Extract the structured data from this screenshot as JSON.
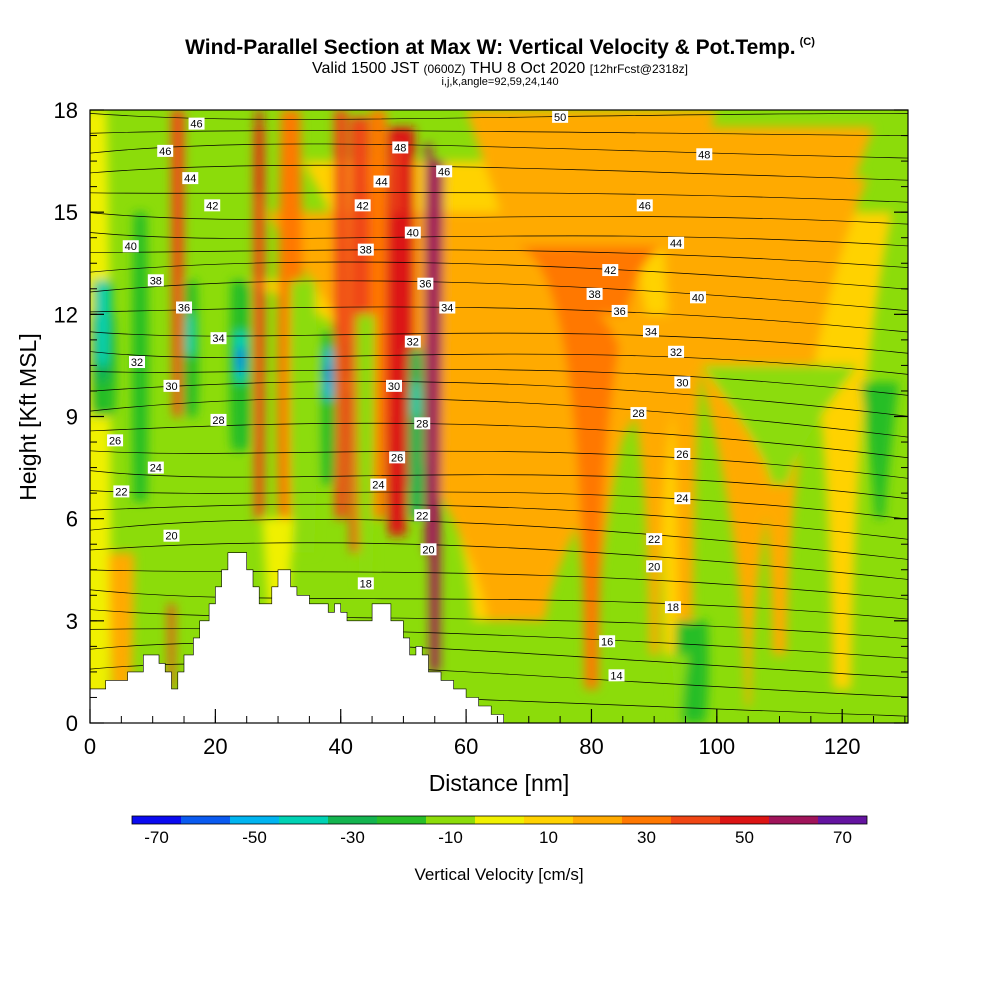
{
  "header": {
    "title": "Wind-Parallel Section at Max W: Vertical Velocity & Pot.Temp.",
    "title_mark": "(C)",
    "subtitle_valid": "Valid 1500 JST",
    "subtitle_zulu": "(0600Z)",
    "subtitle_date": "THU 8 Oct 2020",
    "subtitle_fcst": "[12hrFcst@2318z]",
    "params": "i,j,k,angle=92,59,24,140"
  },
  "chart_data": {
    "type": "heatmap",
    "xlabel": "Distance [nm]",
    "ylabel": "Height [Kft MSL]",
    "xlim": [
      0,
      130.5
    ],
    "ylim": [
      0,
      18
    ],
    "x_ticks": [
      0,
      20,
      40,
      60,
      80,
      100,
      120
    ],
    "y_ticks": [
      0,
      3,
      6,
      9,
      12,
      15,
      18
    ],
    "colorbar": {
      "label": "Vertical Velocity [cm/s]",
      "bounds": [
        -75,
        -65,
        -55,
        -45,
        -35,
        -25,
        -15,
        -5,
        5,
        15,
        25,
        35,
        45,
        55,
        65,
        75
      ],
      "tick_labels": [
        "-70",
        "-50",
        "-30",
        "-10",
        "10",
        "30",
        "50",
        "70"
      ],
      "colors": [
        "#0a0af0",
        "#0a5af0",
        "#00b4f0",
        "#00d2b4",
        "#14b450",
        "#28be28",
        "#8cdc0a",
        "#f0f000",
        "#ffd200",
        "#ffaa00",
        "#ff7800",
        "#f04614",
        "#dc1414",
        "#a0145a",
        "#6414a0"
      ]
    },
    "terrain": [
      [
        0,
        1
      ],
      [
        2.5,
        1
      ],
      [
        2.5,
        1.25
      ],
      [
        6,
        1.25
      ],
      [
        6,
        1.5
      ],
      [
        8.5,
        1.5
      ],
      [
        8.5,
        2
      ],
      [
        11,
        2
      ],
      [
        11,
        1.75
      ],
      [
        12,
        1.75
      ],
      [
        12,
        1.5
      ],
      [
        13,
        1.5
      ],
      [
        13,
        1
      ],
      [
        14,
        1
      ],
      [
        14,
        1.5
      ],
      [
        15,
        1.5
      ],
      [
        15,
        2
      ],
      [
        16.5,
        2
      ],
      [
        16.5,
        2.5
      ],
      [
        17.5,
        2.5
      ],
      [
        17.5,
        3
      ],
      [
        19,
        3
      ],
      [
        19,
        3.5
      ],
      [
        20,
        3.5
      ],
      [
        20,
        4
      ],
      [
        21,
        4
      ],
      [
        21,
        4.5
      ],
      [
        22,
        4.5
      ],
      [
        22,
        5
      ],
      [
        25,
        5
      ],
      [
        25,
        4.5
      ],
      [
        26,
        4.5
      ],
      [
        26,
        4
      ],
      [
        27,
        4
      ],
      [
        27,
        3.5
      ],
      [
        29,
        3.5
      ],
      [
        29,
        4
      ],
      [
        30,
        4
      ],
      [
        30,
        4.5
      ],
      [
        32,
        4.5
      ],
      [
        32,
        4
      ],
      [
        33,
        4
      ],
      [
        33,
        3.75
      ],
      [
        35,
        3.75
      ],
      [
        35,
        3.5
      ],
      [
        38,
        3.5
      ],
      [
        38,
        3.25
      ],
      [
        39,
        3.25
      ],
      [
        39,
        3.5
      ],
      [
        40,
        3.5
      ],
      [
        40,
        3.25
      ],
      [
        41,
        3.25
      ],
      [
        41,
        3
      ],
      [
        45,
        3
      ],
      [
        45,
        3.5
      ],
      [
        48,
        3.5
      ],
      [
        48,
        3
      ],
      [
        50,
        3
      ],
      [
        50,
        2.5
      ],
      [
        51,
        2.5
      ],
      [
        51,
        2
      ],
      [
        52,
        2
      ],
      [
        52,
        2.25
      ],
      [
        53,
        2.25
      ],
      [
        53,
        2
      ],
      [
        54,
        2
      ],
      [
        54,
        1.5
      ],
      [
        56,
        1.5
      ],
      [
        56,
        1.25
      ],
      [
        58,
        1.25
      ],
      [
        58,
        1
      ],
      [
        60,
        1
      ],
      [
        60,
        0.75
      ],
      [
        62,
        0.75
      ],
      [
        62,
        0.5
      ],
      [
        64,
        0.5
      ],
      [
        64,
        0.25
      ],
      [
        66,
        0.25
      ],
      [
        66,
        0
      ]
    ],
    "theta_labels": [
      {
        "text": "46",
        "x": 17,
        "y": 17.6
      },
      {
        "text": "46",
        "x": 12,
        "y": 16.8
      },
      {
        "text": "44",
        "x": 16,
        "y": 16
      },
      {
        "text": "42",
        "x": 19.5,
        "y": 15.2
      },
      {
        "text": "40",
        "x": 6.5,
        "y": 14
      },
      {
        "text": "38",
        "x": 10.5,
        "y": 13
      },
      {
        "text": "36",
        "x": 15,
        "y": 12.2
      },
      {
        "text": "34",
        "x": 20.5,
        "y": 11.3
      },
      {
        "text": "32",
        "x": 7.5,
        "y": 10.6
      },
      {
        "text": "30",
        "x": 13,
        "y": 9.9
      },
      {
        "text": "28",
        "x": 20.5,
        "y": 8.9
      },
      {
        "text": "26",
        "x": 4,
        "y": 8.3
      },
      {
        "text": "24",
        "x": 10.5,
        "y": 7.5
      },
      {
        "text": "22",
        "x": 5,
        "y": 6.8
      },
      {
        "text": "20",
        "x": 13,
        "y": 5.5
      },
      {
        "text": "48",
        "x": 49.5,
        "y": 16.9
      },
      {
        "text": "46",
        "x": 56.5,
        "y": 16.2
      },
      {
        "text": "44",
        "x": 46.5,
        "y": 15.9
      },
      {
        "text": "42",
        "x": 43.5,
        "y": 15.2
      },
      {
        "text": "40",
        "x": 51.5,
        "y": 14.4
      },
      {
        "text": "38",
        "x": 44,
        "y": 13.9
      },
      {
        "text": "36",
        "x": 53.5,
        "y": 12.9
      },
      {
        "text": "34",
        "x": 57,
        "y": 12.2
      },
      {
        "text": "32",
        "x": 51.5,
        "y": 11.2
      },
      {
        "text": "30",
        "x": 48.5,
        "y": 9.9
      },
      {
        "text": "28",
        "x": 53,
        "y": 8.8
      },
      {
        "text": "26",
        "x": 49,
        "y": 7.8
      },
      {
        "text": "24",
        "x": 46,
        "y": 7
      },
      {
        "text": "22",
        "x": 53,
        "y": 6.1
      },
      {
        "text": "20",
        "x": 54,
        "y": 5.1
      },
      {
        "text": "18",
        "x": 44,
        "y": 4.1
      },
      {
        "text": "50",
        "x": 75,
        "y": 17.8
      },
      {
        "text": "48",
        "x": 98,
        "y": 16.7
      },
      {
        "text": "46",
        "x": 88.5,
        "y": 15.2
      },
      {
        "text": "44",
        "x": 93.5,
        "y": 14.1
      },
      {
        "text": "42",
        "x": 83,
        "y": 13.3
      },
      {
        "text": "40",
        "x": 97,
        "y": 12.5
      },
      {
        "text": "38",
        "x": 80.5,
        "y": 12.6
      },
      {
        "text": "36",
        "x": 84.5,
        "y": 12.1
      },
      {
        "text": "34",
        "x": 89.5,
        "y": 11.5
      },
      {
        "text": "32",
        "x": 93.5,
        "y": 10.9
      },
      {
        "text": "30",
        "x": 94.5,
        "y": 10
      },
      {
        "text": "28",
        "x": 87.5,
        "y": 9.1
      },
      {
        "text": "26",
        "x": 94.5,
        "y": 7.9
      },
      {
        "text": "24",
        "x": 94.5,
        "y": 6.6
      },
      {
        "text": "22",
        "x": 90,
        "y": 5.4
      },
      {
        "text": "20",
        "x": 90,
        "y": 4.6
      },
      {
        "text": "18",
        "x": 93,
        "y": 3.4
      },
      {
        "text": "16",
        "x": 82.5,
        "y": 2.4
      },
      {
        "text": "14",
        "x": 84,
        "y": 1.4
      }
    ]
  }
}
